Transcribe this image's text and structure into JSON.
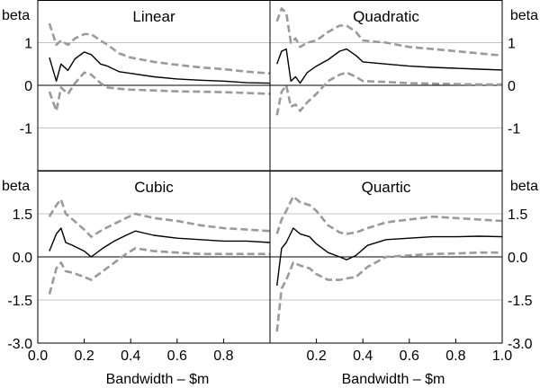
{
  "figure": {
    "y_unit_label": "beta",
    "x_axis_label": "Bandwidth – $m",
    "colors": {
      "estimate": "#000000",
      "confidence_band": "#9a9a9a",
      "grid": "#b0b0b0",
      "frame": "#000000"
    }
  },
  "chart_data": [
    {
      "type": "line",
      "title": "Linear",
      "xlabel": "Bandwidth – $m",
      "ylabel": "beta",
      "xlim": [
        0,
        1.0
      ],
      "ylim": [
        -2,
        2
      ],
      "x_ticks": [
        "0.0",
        "0.2",
        "0.4",
        "0.6",
        "0.8"
      ],
      "y_ticks_left": [
        "1",
        "0",
        "-1"
      ],
      "y_ticks_right": [
        "1",
        "0",
        "-1"
      ],
      "series": [
        {
          "role": "estimate",
          "x": [
            0.05,
            0.08,
            0.1,
            0.13,
            0.16,
            0.2,
            0.23,
            0.27,
            0.3,
            0.35,
            0.4,
            0.5,
            0.6,
            0.7,
            0.8,
            0.9,
            1.0
          ],
          "values": [
            0.65,
            0.1,
            0.5,
            0.35,
            0.62,
            0.78,
            0.72,
            0.5,
            0.45,
            0.32,
            0.28,
            0.2,
            0.15,
            0.12,
            0.1,
            0.06,
            0.05
          ]
        },
        {
          "role": "upper",
          "x": [
            0.05,
            0.08,
            0.1,
            0.13,
            0.16,
            0.2,
            0.23,
            0.27,
            0.3,
            0.35,
            0.4,
            0.5,
            0.6,
            0.7,
            0.8,
            0.9,
            1.0
          ],
          "values": [
            1.45,
            0.95,
            1.05,
            0.95,
            1.1,
            1.2,
            1.2,
            1.05,
            0.95,
            0.75,
            0.65,
            0.55,
            0.48,
            0.42,
            0.38,
            0.32,
            0.28
          ]
        },
        {
          "role": "lower",
          "x": [
            0.05,
            0.08,
            0.1,
            0.13,
            0.16,
            0.2,
            0.23,
            0.27,
            0.3,
            0.35,
            0.4,
            0.5,
            0.6,
            0.7,
            0.8,
            0.9,
            1.0
          ],
          "values": [
            -0.15,
            -0.6,
            -0.05,
            -0.2,
            0.05,
            0.3,
            0.25,
            0.05,
            -0.05,
            -0.08,
            -0.1,
            -0.12,
            -0.14,
            -0.15,
            -0.16,
            -0.18,
            -0.2
          ]
        }
      ]
    },
    {
      "type": "line",
      "title": "Quadratic",
      "xlabel": "Bandwidth – $m",
      "ylabel": "beta",
      "xlim": [
        0,
        1.0
      ],
      "ylim": [
        -2,
        2
      ],
      "x_ticks": [
        "0.2",
        "0.4",
        "0.6",
        "0.8",
        "1.0"
      ],
      "y_ticks_left": [
        "1",
        "0",
        "-1"
      ],
      "y_ticks_right": [
        "1",
        "0",
        "-1"
      ],
      "series": [
        {
          "role": "estimate",
          "x": [
            0.03,
            0.05,
            0.07,
            0.09,
            0.11,
            0.13,
            0.16,
            0.2,
            0.25,
            0.3,
            0.33,
            0.37,
            0.4,
            0.5,
            0.6,
            0.7,
            0.8,
            0.9,
            1.0
          ],
          "values": [
            0.5,
            0.8,
            0.85,
            0.1,
            0.2,
            0.05,
            0.3,
            0.45,
            0.6,
            0.8,
            0.85,
            0.7,
            0.55,
            0.5,
            0.45,
            0.42,
            0.4,
            0.38,
            0.36
          ]
        },
        {
          "role": "upper",
          "x": [
            0.03,
            0.05,
            0.07,
            0.09,
            0.11,
            0.13,
            0.16,
            0.2,
            0.25,
            0.3,
            0.33,
            0.37,
            0.4,
            0.5,
            0.6,
            0.7,
            0.8,
            0.9,
            1.0
          ],
          "values": [
            1.5,
            1.8,
            1.7,
            1.0,
            1.1,
            0.9,
            1.0,
            1.05,
            1.25,
            1.4,
            1.4,
            1.25,
            1.05,
            1.0,
            0.9,
            0.85,
            0.8,
            0.75,
            0.7
          ]
        },
        {
          "role": "lower",
          "x": [
            0.03,
            0.05,
            0.07,
            0.09,
            0.11,
            0.13,
            0.16,
            0.2,
            0.25,
            0.3,
            0.33,
            0.37,
            0.4,
            0.5,
            0.6,
            0.7,
            0.8,
            0.9,
            1.0
          ],
          "values": [
            -0.7,
            -0.15,
            0.0,
            -0.5,
            -0.45,
            -0.6,
            -0.4,
            -0.2,
            0.1,
            0.25,
            0.3,
            0.2,
            0.1,
            0.08,
            0.05,
            0.04,
            0.03,
            0.02,
            0.02
          ]
        }
      ]
    },
    {
      "type": "line",
      "title": "Cubic",
      "xlabel": "Bandwidth – $m",
      "ylabel": "beta",
      "xlim": [
        0,
        1.0
      ],
      "ylim": [
        -3,
        3
      ],
      "x_ticks": [
        "0.0",
        "0.2",
        "0.4",
        "0.6",
        "0.8"
      ],
      "y_ticks_left": [
        "1.5",
        "0.0",
        "-1.5",
        "-3.0"
      ],
      "y_ticks_right": [
        "1.5",
        "0.0",
        "-1.5",
        "-3.0"
      ],
      "series": [
        {
          "role": "estimate",
          "x": [
            0.05,
            0.08,
            0.1,
            0.12,
            0.15,
            0.2,
            0.23,
            0.28,
            0.33,
            0.38,
            0.42,
            0.5,
            0.6,
            0.7,
            0.8,
            0.9,
            1.0
          ],
          "values": [
            0.2,
            0.8,
            1.0,
            0.5,
            0.4,
            0.2,
            0.0,
            0.3,
            0.55,
            0.75,
            0.9,
            0.75,
            0.65,
            0.6,
            0.55,
            0.55,
            0.5
          ]
        },
        {
          "role": "upper",
          "x": [
            0.05,
            0.08,
            0.1,
            0.12,
            0.15,
            0.2,
            0.23,
            0.28,
            0.33,
            0.38,
            0.42,
            0.5,
            0.6,
            0.7,
            0.8,
            0.9,
            1.0
          ],
          "values": [
            1.4,
            1.8,
            2.0,
            1.5,
            1.3,
            0.95,
            0.7,
            0.95,
            1.15,
            1.35,
            1.5,
            1.35,
            1.25,
            1.1,
            1.0,
            0.95,
            0.9
          ]
        },
        {
          "role": "lower",
          "x": [
            0.05,
            0.08,
            0.1,
            0.12,
            0.15,
            0.2,
            0.23,
            0.28,
            0.33,
            0.38,
            0.42,
            0.5,
            0.6,
            0.7,
            0.8,
            0.9,
            1.0
          ],
          "values": [
            -1.3,
            -0.4,
            -0.2,
            -0.5,
            -0.55,
            -0.7,
            -0.8,
            -0.5,
            -0.2,
            0.1,
            0.3,
            0.2,
            0.15,
            0.1,
            0.1,
            0.1,
            0.1
          ]
        }
      ]
    },
    {
      "type": "line",
      "title": "Quartic",
      "xlabel": "Bandwidth – $m",
      "ylabel": "beta",
      "xlim": [
        0,
        1.0
      ],
      "ylim": [
        -3,
        3
      ],
      "x_ticks": [
        "0.2",
        "0.4",
        "0.6",
        "0.8",
        "1.0"
      ],
      "y_ticks_left": [
        "1.5",
        "0.0",
        "-1.5",
        "-3.0"
      ],
      "y_ticks_right": [
        "1.5",
        "0.0",
        "-1.5",
        "-3.0"
      ],
      "series": [
        {
          "role": "estimate",
          "x": [
            0.03,
            0.05,
            0.07,
            0.1,
            0.13,
            0.17,
            0.2,
            0.25,
            0.3,
            0.33,
            0.37,
            0.42,
            0.5,
            0.6,
            0.7,
            0.8,
            0.9,
            1.0
          ],
          "values": [
            -1.0,
            0.3,
            0.5,
            1.0,
            0.8,
            0.7,
            0.45,
            0.15,
            0.0,
            -0.1,
            0.05,
            0.4,
            0.6,
            0.65,
            0.7,
            0.7,
            0.72,
            0.7
          ]
        },
        {
          "role": "upper",
          "x": [
            0.03,
            0.05,
            0.07,
            0.1,
            0.13,
            0.17,
            0.2,
            0.25,
            0.3,
            0.33,
            0.37,
            0.42,
            0.5,
            0.6,
            0.7,
            0.8,
            0.9,
            1.0
          ],
          "values": [
            0.8,
            1.3,
            1.6,
            2.1,
            1.9,
            1.8,
            1.6,
            1.1,
            0.85,
            0.8,
            0.85,
            1.0,
            1.2,
            1.3,
            1.4,
            1.35,
            1.3,
            1.25
          ]
        },
        {
          "role": "lower",
          "x": [
            0.03,
            0.05,
            0.07,
            0.1,
            0.13,
            0.17,
            0.2,
            0.25,
            0.3,
            0.33,
            0.37,
            0.42,
            0.5,
            0.6,
            0.7,
            0.8,
            0.9,
            1.0
          ],
          "values": [
            -2.6,
            -1.1,
            -0.8,
            -0.2,
            -0.3,
            -0.4,
            -0.6,
            -0.8,
            -0.8,
            -0.75,
            -0.7,
            -0.35,
            0.0,
            0.05,
            0.1,
            0.12,
            0.15,
            0.15
          ]
        }
      ]
    }
  ]
}
